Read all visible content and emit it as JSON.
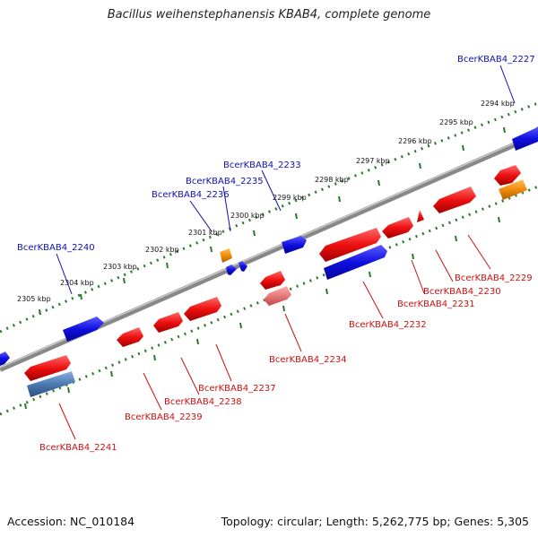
{
  "title": "Bacillus weihenstephanensis KBAB4, complete genome",
  "footer": {
    "accession": "Accession: NC_010184",
    "summary": "Topology: circular; Length: 5,262,775 bp; Genes: 5,305"
  },
  "colors": {
    "forward_gene": "#1010e0",
    "reverse_gene": "#e81010",
    "rna_gene": "#f08c0a",
    "pseudo_reverse": "#e87a7a",
    "pseudo_forward": "#4a7ab0",
    "backbone": "#888888",
    "ticks": "#2a7a2a",
    "forward_label": "#1010b0",
    "reverse_label": "#cc1010"
  },
  "kbp_ticks": [
    "2294 kbp",
    "2295 kbp",
    "2296 kbp",
    "2297 kbp",
    "2298 kbp",
    "2299 kbp",
    "2300 kbp",
    "2301 kbp",
    "2302 kbp",
    "2303 kbp",
    "2304 kbp",
    "2305 kbp"
  ],
  "forward_labels": [
    "BcerKBAB4_2227",
    "BcerKBAB4_2233",
    "BcerKBAB4_2235",
    "BcerKBAB4_2236",
    "BcerKBAB4_2240"
  ],
  "reverse_labels": [
    "BcerKBAB4_2229",
    "BcerKBAB4_2230",
    "BcerKBAB4_2231",
    "BcerKBAB4_2232",
    "BcerKBAB4_2234",
    "BcerKBAB4_2237",
    "BcerKBAB4_2238",
    "BcerKBAB4_2239",
    "BcerKBAB4_2241"
  ]
}
